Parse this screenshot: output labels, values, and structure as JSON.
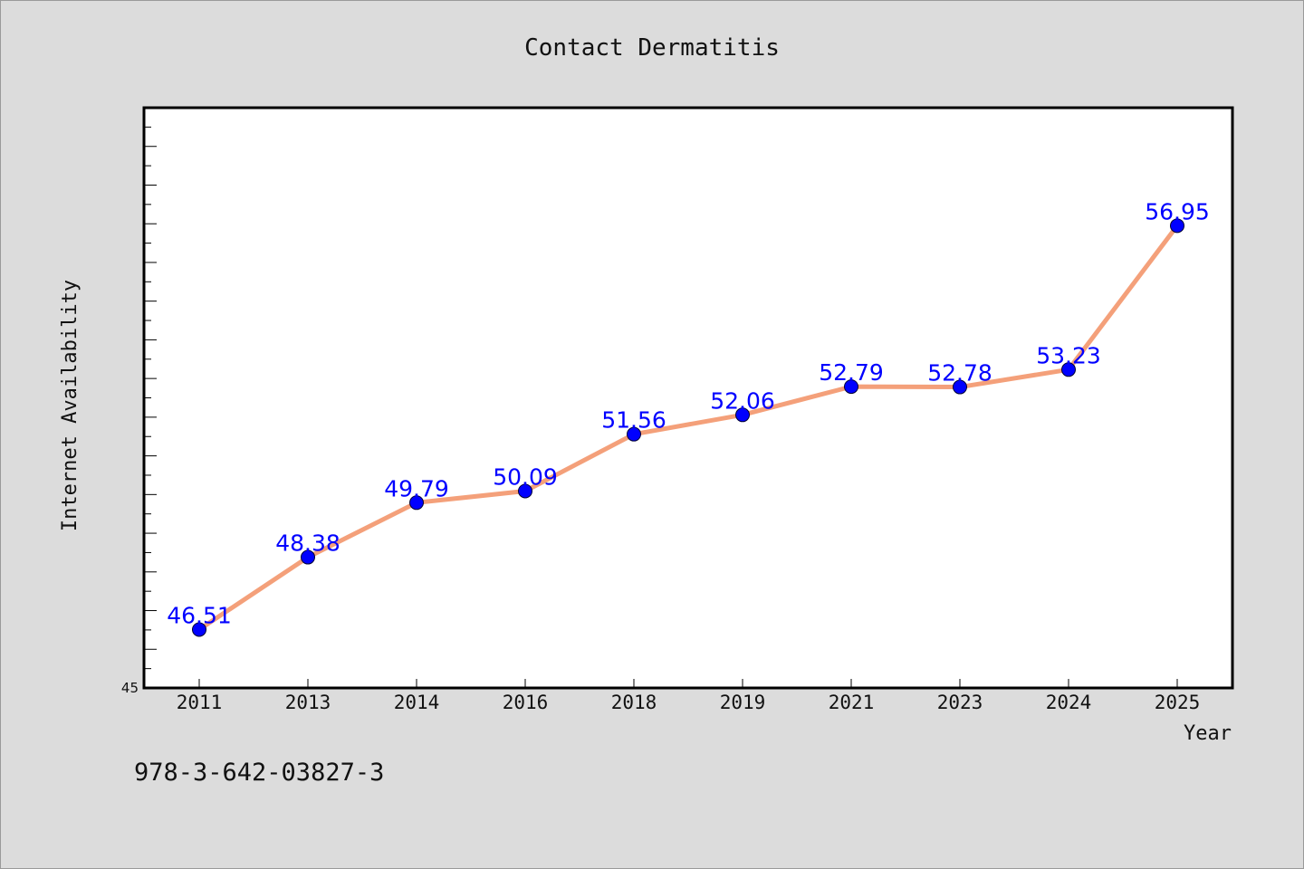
{
  "chart_data": {
    "type": "line",
    "title": "Contact Dermatitis",
    "xlabel": "Year",
    "ylabel": "Internet Availability",
    "categories": [
      "2011",
      "2013",
      "2014",
      "2016",
      "2018",
      "2019",
      "2021",
      "2023",
      "2024",
      "2025"
    ],
    "series": [
      {
        "values": [
          46.51,
          48.38,
          49.79,
          50.09,
          51.56,
          52.06,
          52.79,
          52.78,
          53.23,
          56.95
        ],
        "labels": [
          "46.51",
          "48.38",
          "49.79",
          "50.09",
          "51.56",
          "52.06",
          "52.79",
          "52.78",
          "53.23",
          "56.95"
        ],
        "line_color": "#f4a07a",
        "marker_color": "#0000ff"
      }
    ],
    "ylim": [
      45,
      60
    ],
    "yticks": [
      {
        "value": 45,
        "label": "45"
      }
    ],
    "grid": false,
    "background": "#ffffff"
  },
  "footer": {
    "code": "978-3-642-03827-3"
  }
}
